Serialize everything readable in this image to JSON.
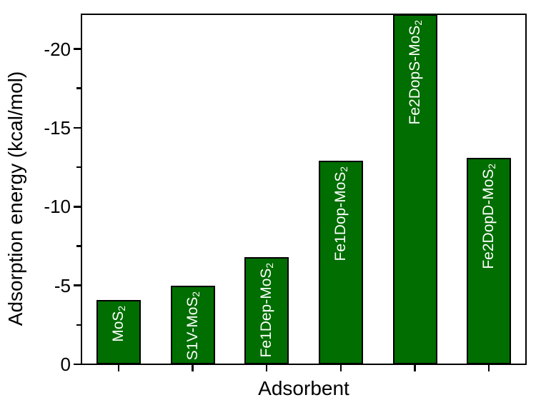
{
  "chart_data": {
    "type": "bar",
    "title": "",
    "xlabel": "Adsorbent",
    "ylabel": "Adsorption energy (kcal/mol)",
    "categories": [
      {
        "base": "MoS",
        "sub": "2"
      },
      {
        "base": "S1V-MoS",
        "sub": "2"
      },
      {
        "base": "Fe1Dep-MoS",
        "sub": "2"
      },
      {
        "base": "Fe1Dop-MoS",
        "sub": "2"
      },
      {
        "base": "Fe2DopS-MoS",
        "sub": "2"
      },
      {
        "base": "Fe2DopD-MoS",
        "sub": "2"
      }
    ],
    "values": [
      -4.1,
      -5.0,
      -6.8,
      -12.9,
      -22.2,
      -13.1
    ],
    "ylim": [
      0,
      -22.2
    ],
    "y_major_ticks": [
      {
        "value": 0,
        "label": "0"
      },
      {
        "value": -5,
        "label": "-5"
      },
      {
        "value": -10,
        "label": "-10"
      },
      {
        "value": -15,
        "label": "-15"
      },
      {
        "value": -20,
        "label": "-20"
      }
    ],
    "y_minor_ticks": [
      -2.5,
      -7.5,
      -12.5,
      -17.5
    ],
    "grid": false,
    "legend": "none",
    "colors": {
      "bar_fill": "#006e00",
      "bar_border": "#000000",
      "bar_label_text": "#ffffff",
      "axis": "#000000",
      "background": "#ffffff"
    }
  }
}
